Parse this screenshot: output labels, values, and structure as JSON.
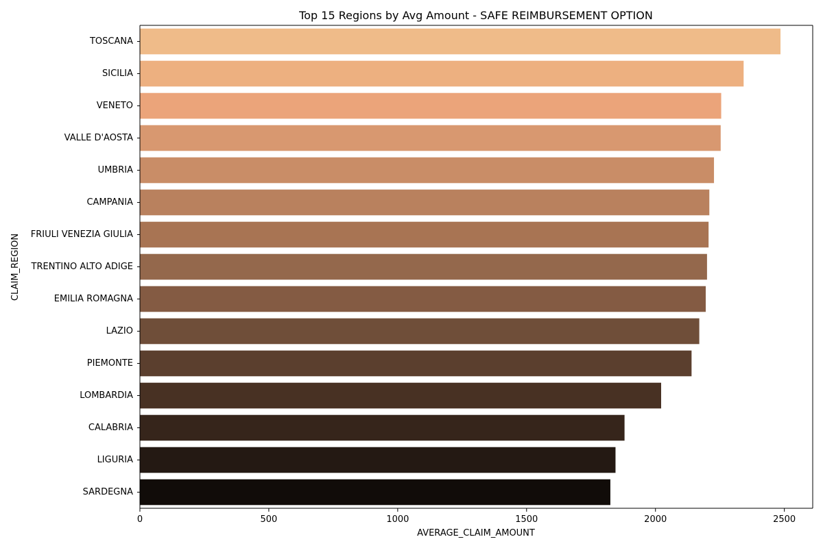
{
  "chart_data": {
    "type": "bar",
    "orientation": "horizontal",
    "title": "Top 15 Regions by Avg Amount - SAFE REIMBURSEMENT OPTION",
    "xlabel": "AVERAGE_CLAIM_AMOUNT",
    "ylabel": "CLAIM_REGION",
    "xlim": [
      0,
      2610
    ],
    "xticks": [
      0,
      500,
      1000,
      1500,
      2000,
      2500
    ],
    "grid": false,
    "categories": [
      "TOSCANA",
      "SICILIA",
      "VENETO",
      "VALLE D'AOSTA",
      "UMBRIA",
      "CAMPANIA",
      "FRIULI VENEZIA GIULIA",
      "TRENTINO ALTO ADIGE",
      "EMILIA ROMAGNA",
      "LAZIO",
      "PIEMONTE",
      "LOMBARDIA",
      "CALABRIA",
      "LIGURIA",
      "SARDEGNA"
    ],
    "values": [
      2485,
      2342,
      2255,
      2253,
      2227,
      2209,
      2206,
      2200,
      2195,
      2170,
      2140,
      2022,
      1880,
      1845,
      1825
    ],
    "colors": [
      "#efbb89",
      "#edb080",
      "#eba47a",
      "#d89870",
      "#c98d67",
      "#b9815e",
      "#a87453",
      "#94684c",
      "#845b43",
      "#6f4e39",
      "#5b3f2e",
      "#483123",
      "#36251b",
      "#241913",
      "#110c09"
    ]
  }
}
